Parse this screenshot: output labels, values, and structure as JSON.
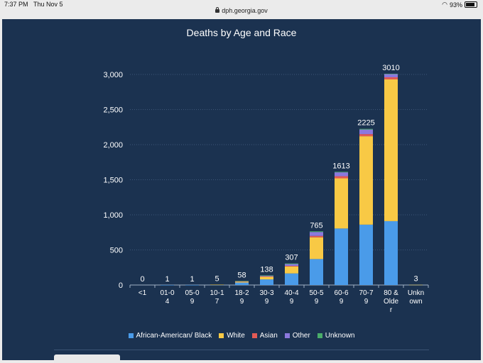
{
  "status": {
    "time": "7:37 PM",
    "date": "Thu Nov 5",
    "battery": "93%"
  },
  "browser": {
    "url": "dph.georgia.gov"
  },
  "colors": {
    "panel": "#1b3250",
    "African-American/ Black": "#4a9be9",
    "White": "#f8c945",
    "Asian": "#e25a55",
    "Other": "#8b78dd",
    "Unknown": "#4aad6a"
  },
  "chart_data": {
    "type": "bar",
    "stacked": true,
    "title": "Deaths by Age and Race",
    "xlabel": "",
    "ylabel": "",
    "ylim": [
      0,
      3000
    ],
    "yticks": [
      "0",
      "500",
      "1,000",
      "1,500",
      "2,000",
      "2,500",
      "3,000"
    ],
    "ytick_values": [
      0,
      500,
      1000,
      1500,
      2000,
      2500,
      3000
    ],
    "grid": true,
    "legend_position": "bottom",
    "categories": [
      [
        "<1"
      ],
      [
        "01-0",
        "4"
      ],
      [
        "05-0",
        "9"
      ],
      [
        "10-1",
        "7"
      ],
      [
        "18-2",
        "9"
      ],
      [
        "30-3",
        "9"
      ],
      [
        "40-4",
        "9"
      ],
      [
        "50-5",
        "9"
      ],
      [
        "60-6",
        "9"
      ],
      [
        "70-7",
        "9"
      ],
      [
        "80 &",
        "Olde",
        "r"
      ],
      [
        "Unkn",
        "own"
      ]
    ],
    "totals": [
      "0",
      "1",
      "1",
      "5",
      "58",
      "138",
      "307",
      "765",
      "1613",
      "2225",
      "3010",
      "3"
    ],
    "series": [
      {
        "name": "African-American/ Black",
        "values": [
          0,
          1,
          1,
          3,
          35,
          80,
          165,
          370,
          805,
          860,
          910,
          2
        ]
      },
      {
        "name": "White",
        "values": [
          0,
          0,
          0,
          2,
          15,
          40,
          100,
          310,
          715,
          1260,
          2020,
          1
        ]
      },
      {
        "name": "Asian",
        "values": [
          0,
          0,
          0,
          0,
          2,
          4,
          8,
          20,
          30,
          30,
          30,
          0
        ]
      },
      {
        "name": "Other",
        "values": [
          0,
          0,
          0,
          0,
          4,
          10,
          25,
          55,
          55,
          65,
          45,
          0
        ]
      },
      {
        "name": "Unknown",
        "values": [
          0,
          0,
          0,
          0,
          2,
          4,
          9,
          10,
          8,
          10,
          5,
          0
        ]
      }
    ]
  }
}
